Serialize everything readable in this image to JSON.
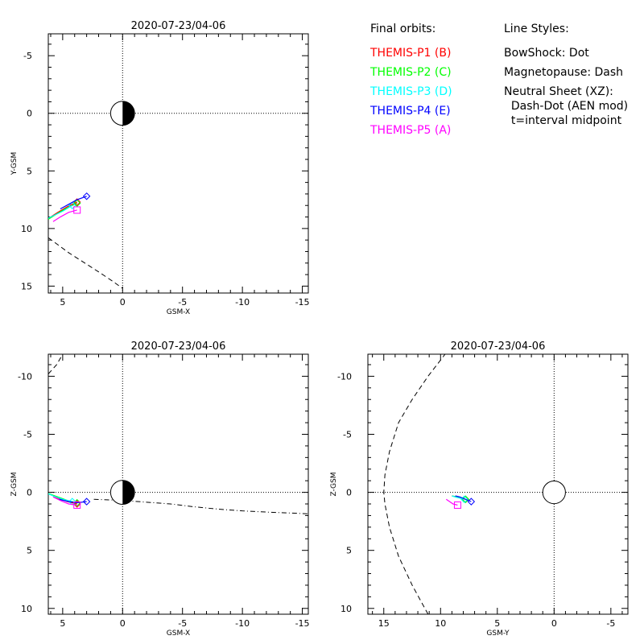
{
  "chart_data": [
    {
      "type": "line",
      "title": "2020-07-23/04-06",
      "xlabel": "GSM-X",
      "ylabel": "Y-GSM",
      "xlim": [
        6.2,
        -15.5
      ],
      "ylim": [
        -6.9,
        15.6
      ],
      "xticks": [
        5,
        0,
        -5,
        -10,
        -15
      ],
      "yticks": [
        -5,
        0,
        5,
        10,
        15
      ],
      "earth": {
        "x": 0,
        "y": 0,
        "radius": 1,
        "shading": "half"
      },
      "series": [
        {
          "color": "#ff0000",
          "marker": "diamond",
          "x": [
            3.8,
            4.6,
            5.4,
            6.0
          ],
          "y": [
            7.7,
            8.1,
            8.6,
            9.0
          ]
        },
        {
          "color": "#00ff00",
          "marker": "diamond",
          "x": [
            3.8,
            4.8,
            5.6,
            6.2
          ],
          "y": [
            7.8,
            8.3,
            8.8,
            9.2
          ]
        },
        {
          "color": "#00ffff",
          "marker": "diamond",
          "x": [
            4.2,
            5.0,
            5.8,
            6.4
          ],
          "y": [
            8.0,
            8.5,
            8.9,
            9.2
          ]
        },
        {
          "color": "#0000ff",
          "marker": "diamond",
          "x": [
            3.0,
            3.8,
            4.5,
            5.2
          ],
          "y": [
            7.2,
            7.5,
            7.9,
            8.3
          ]
        },
        {
          "color": "#ff00ff",
          "marker": "square",
          "x": [
            3.8,
            4.5,
            5.2,
            5.8
          ],
          "y": [
            8.4,
            8.6,
            9.0,
            9.4
          ]
        }
      ],
      "boundaries": [
        {
          "name": "bow-shock-or-magnetopause",
          "style": "dash",
          "x": [
            6.2,
            4.5,
            3.0,
            1.8,
            0.8,
            0.0
          ],
          "y": [
            10.8,
            12.1,
            13.1,
            13.9,
            14.6,
            15.2
          ]
        }
      ]
    },
    {
      "type": "line",
      "title": "2020-07-23/04-06",
      "xlabel": "GSM-X",
      "ylabel": "Z-GSM",
      "xlim": [
        6.2,
        -15.5
      ],
      "ylim": [
        -11.9,
        10.5
      ],
      "xticks": [
        5,
        0,
        -5,
        -10,
        -15
      ],
      "yticks": [
        -10,
        -5,
        0,
        5,
        10
      ],
      "earth": {
        "x": 0,
        "y": 0,
        "radius": 1,
        "shading": "half"
      },
      "series": [
        {
          "color": "#ff0000",
          "marker": "diamond",
          "x": [
            3.8,
            4.6,
            5.4,
            6.0
          ],
          "y": [
            1.0,
            0.8,
            0.5,
            0.2
          ]
        },
        {
          "color": "#00ff00",
          "marker": "diamond",
          "x": [
            3.8,
            4.6,
            5.4,
            6.2
          ],
          "y": [
            0.9,
            0.7,
            0.4,
            0.1
          ]
        },
        {
          "color": "#00ffff",
          "marker": "diamond",
          "x": [
            4.2,
            5.0,
            5.8,
            6.5
          ],
          "y": [
            0.8,
            0.6,
            0.3,
            0.0
          ]
        },
        {
          "color": "#0000ff",
          "marker": "diamond",
          "x": [
            3.0,
            3.8,
            4.5,
            5.3
          ],
          "y": [
            0.8,
            0.9,
            0.8,
            0.6
          ]
        },
        {
          "color": "#ff00ff",
          "marker": "square",
          "x": [
            3.8,
            4.5,
            5.2,
            5.8
          ],
          "y": [
            1.1,
            1.0,
            0.7,
            0.4
          ]
        }
      ],
      "boundaries": [
        {
          "name": "neutral-sheet",
          "style": "dashdot",
          "x": [
            2.4,
            0.0,
            -2.0,
            -4.0,
            -6.0,
            -8.0,
            -10.0,
            -12.0,
            -15.5
          ],
          "y": [
            0.6,
            0.7,
            0.85,
            1.0,
            1.25,
            1.45,
            1.6,
            1.7,
            1.85
          ]
        },
        {
          "name": "bow-shock-or-magnetopause",
          "style": "dash",
          "x": [
            6.2,
            5.5,
            5.0
          ],
          "y": [
            -10.2,
            -11.0,
            -11.9
          ]
        }
      ]
    },
    {
      "type": "line",
      "title": "2020-07-23/04-06",
      "xlabel": "GSM-Y",
      "ylabel": "Z-GSM",
      "xlim": [
        16.4,
        -6.5
      ],
      "ylim": [
        -11.9,
        10.5
      ],
      "xticks": [
        15,
        10,
        5,
        0,
        -5
      ],
      "yticks": [
        -10,
        -5,
        0,
        5,
        10
      ],
      "earth": {
        "x": 0,
        "y": 0,
        "radius": 1,
        "shading": "none"
      },
      "series": [
        {
          "color": "#ff0000",
          "marker": "diamond",
          "x": [
            7.8,
            8.2,
            8.6,
            9.0
          ],
          "y": [
            0.6,
            0.5,
            0.4,
            0.3
          ]
        },
        {
          "color": "#00ff00",
          "marker": "diamond",
          "x": [
            7.8,
            8.2,
            8.6,
            9.0
          ],
          "y": [
            0.6,
            0.5,
            0.4,
            0.3
          ]
        },
        {
          "color": "#00ffff",
          "marker": "diamond",
          "x": [
            7.9,
            8.3,
            8.7,
            9.0
          ],
          "y": [
            0.6,
            0.5,
            0.4,
            0.3
          ]
        },
        {
          "color": "#0000ff",
          "marker": "diamond",
          "x": [
            7.3,
            7.8,
            8.3,
            8.7
          ],
          "y": [
            0.8,
            0.6,
            0.4,
            0.3
          ]
        },
        {
          "color": "#ff00ff",
          "marker": "square",
          "x": [
            8.5,
            8.9,
            9.2,
            9.5
          ],
          "y": [
            1.1,
            1.0,
            0.8,
            0.6
          ]
        }
      ],
      "boundaries": [
        {
          "name": "bow-shock-or-magnetopause",
          "style": "dash",
          "x": [
            11.1,
            12.5,
            13.7,
            14.5,
            14.9,
            15.0,
            14.9,
            14.5,
            13.7,
            12.5,
            11.1,
            9.6
          ],
          "y": [
            10.5,
            8.0,
            5.5,
            3.0,
            1.0,
            0.0,
            -1.5,
            -3.5,
            -6.0,
            -8.0,
            -10.0,
            -11.9
          ]
        }
      ]
    }
  ],
  "legend": {
    "orbits_title": "Final orbits:",
    "styles_title": "Line Styles:",
    "orbits": [
      {
        "label": "THEMIS-P1 (B)",
        "color": "#ff0000"
      },
      {
        "label": "THEMIS-P2 (C)",
        "color": "#00ff00"
      },
      {
        "label": "THEMIS-P3 (D)",
        "color": "#00ffff"
      },
      {
        "label": "THEMIS-P4 (E)",
        "color": "#0000ff"
      },
      {
        "label": "THEMIS-P5 (A)",
        "color": "#ff00ff"
      }
    ],
    "styles": [
      "BowShock: Dot",
      "Magnetopause: Dash",
      "Neutral Sheet (XZ):",
      "  Dash-Dot (AEN mod)",
      "  t=interval midpoint"
    ]
  }
}
